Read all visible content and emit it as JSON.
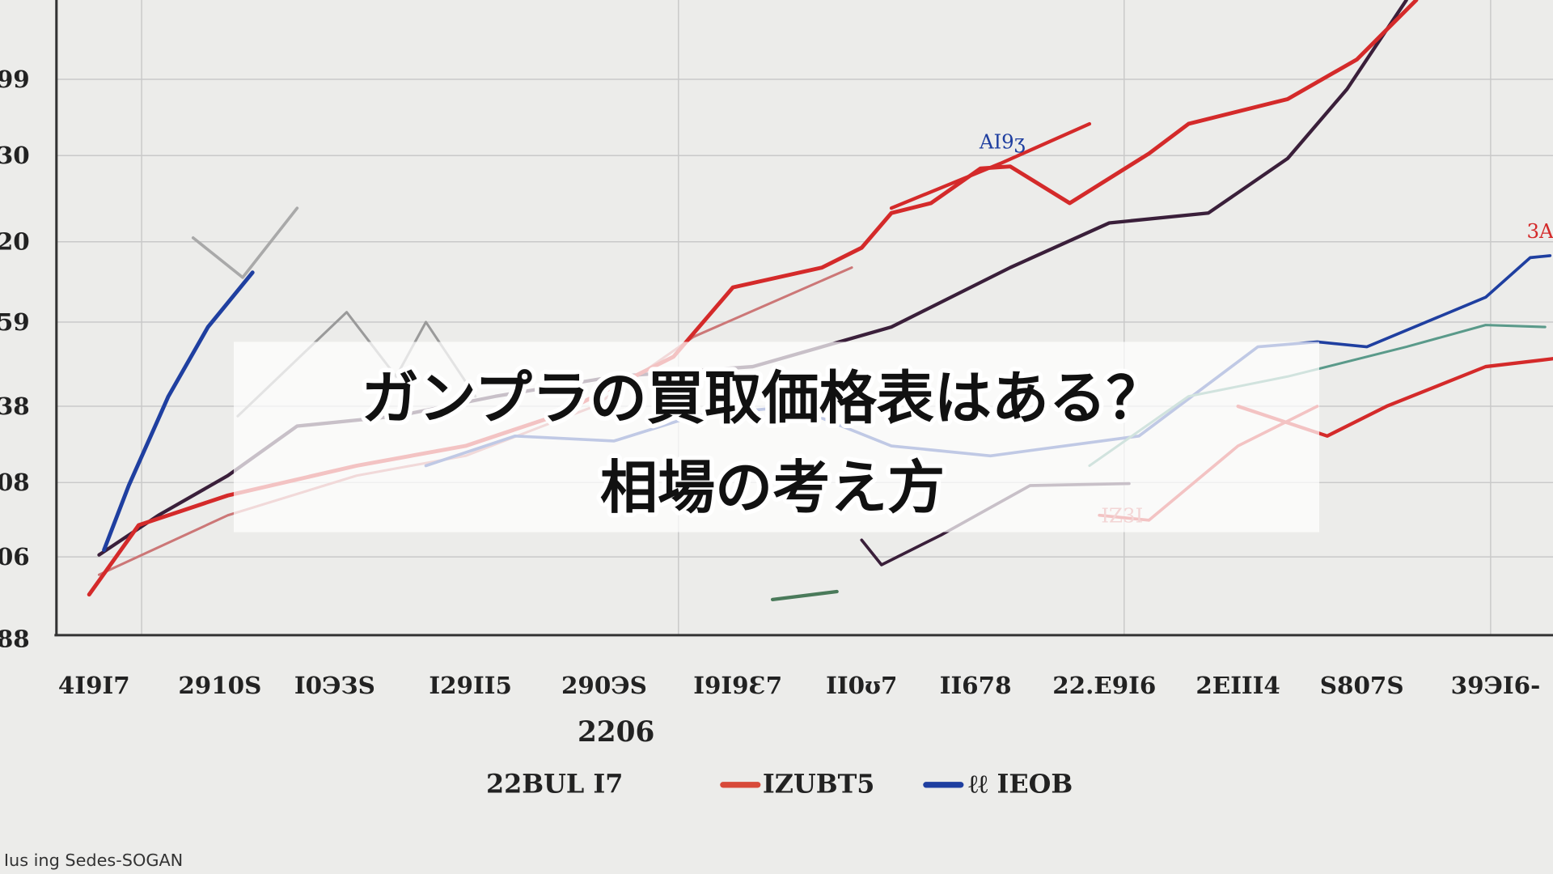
{
  "header": {
    "title_lines": [
      "ガンプラの買取価格表はある？",
      "相場の考え方"
    ]
  },
  "chart": {
    "y_labels": [
      "99",
      "30",
      "20",
      "59",
      "38",
      "08",
      "06",
      "88"
    ],
    "x_labels": [
      "4I9I7",
      "2910S",
      "I0ЭЗS",
      "I29II5",
      "290ЭS",
      "I9I9Ɛ7",
      "II0ʊ7",
      "II678",
      "22.E9I6",
      "2ΕΙΙΙ4",
      "S807S",
      "39ЭI6-"
    ],
    "x_axis_title": "2206",
    "legend": [
      "22BUL I7",
      "IZUBT5",
      "ℓℓ IEOB"
    ],
    "annotations": [
      "AI9ʒ",
      "3A",
      "IZ3I"
    ],
    "footer": "Ius ing Sedes-SOGAN"
  }
}
